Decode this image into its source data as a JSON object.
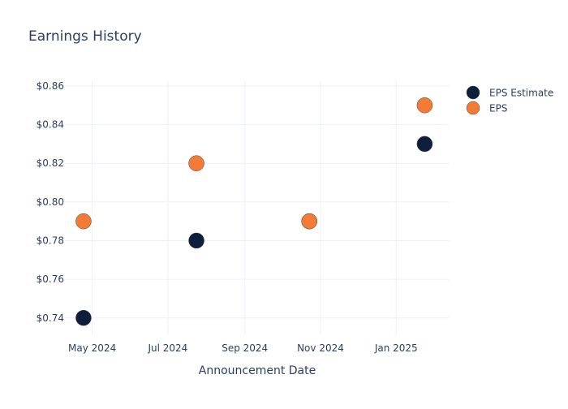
{
  "chart_data": {
    "type": "scatter",
    "title": "Earnings History",
    "xlabel": "Announcement Date",
    "ylabel": "",
    "x_ticks": [
      {
        "date": "2024-05-01",
        "label": "May 2024"
      },
      {
        "date": "2024-07-01",
        "label": "Jul 2024"
      },
      {
        "date": "2024-09-01",
        "label": "Sep 2024"
      },
      {
        "date": "2024-11-01",
        "label": "Nov 2024"
      },
      {
        "date": "2025-01-01",
        "label": "Jan 2025"
      }
    ],
    "y_ticks": [
      {
        "value": 0.74,
        "label": "$0.74"
      },
      {
        "value": 0.76,
        "label": "$0.76"
      },
      {
        "value": 0.78,
        "label": "$0.78"
      },
      {
        "value": 0.8,
        "label": "$0.80"
      },
      {
        "value": 0.82,
        "label": "$0.82"
      },
      {
        "value": 0.84,
        "label": "$0.84"
      },
      {
        "value": 0.86,
        "label": "$0.86"
      }
    ],
    "xlim": [
      "2024-04-09",
      "2025-02-13"
    ],
    "ylim": [
      0.7315,
      0.8625
    ],
    "grid": true,
    "legend_position": "top-right",
    "series": [
      {
        "name": "EPS Estimate",
        "color": "#0d1f3c",
        "points": [
          {
            "x": "2024-04-24",
            "y": 0.74
          },
          {
            "x": "2024-07-24",
            "y": 0.78
          },
          {
            "x": "2024-10-23",
            "y": 0.79
          },
          {
            "x": "2025-01-24",
            "y": 0.83
          }
        ]
      },
      {
        "name": "EPS",
        "color": "#f47b36",
        "points": [
          {
            "x": "2024-04-24",
            "y": 0.79
          },
          {
            "x": "2024-07-24",
            "y": 0.82
          },
          {
            "x": "2024-10-23",
            "y": 0.79
          },
          {
            "x": "2025-01-24",
            "y": 0.85
          }
        ]
      }
    ]
  }
}
